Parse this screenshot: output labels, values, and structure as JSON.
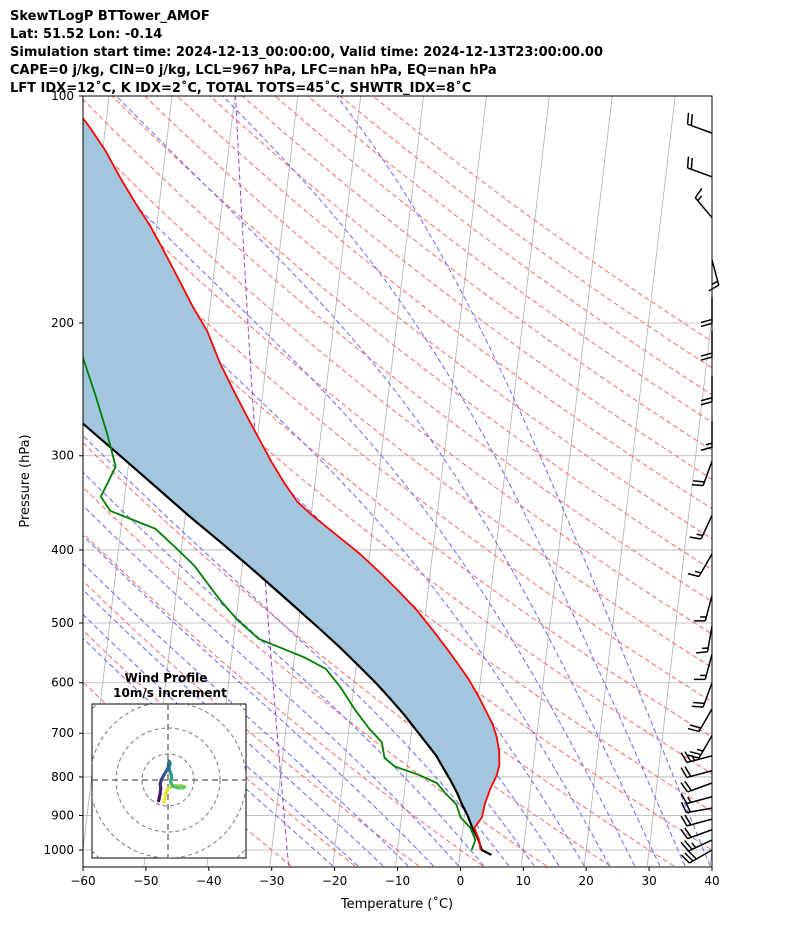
{
  "header": {
    "line1": "SkewTLogP BTTower_AMOF",
    "line2": "Lat: 51.52   Lon: -0.14",
    "line3": "Simulation start time: 2024-12-13_00:00:00, Valid time: 2024-12-13T23:00:00.00",
    "line4": "CAPE=0 j/kg, CIN=0 j/kg, LCL=967 hPa, LFC=nan hPa, EQ=nan hPa",
    "line5": "LFT IDX=12˚C, K IDX=2˚C, TOTAL TOTS=45˚C, SHWTR_IDX=8˚C"
  },
  "chart_data": {
    "type": "skewt",
    "xlabel": "Temperature (˚C)",
    "ylabel": "Pressure (hPa)",
    "xlim": [
      -60,
      40
    ],
    "ylim": [
      1050,
      100
    ],
    "yscale": "log",
    "x_ticks": [
      -60,
      -50,
      -40,
      -30,
      -20,
      -10,
      0,
      10,
      20,
      30,
      40
    ],
    "x_tick_labels": [
      "−60",
      "−50",
      "−40",
      "−30",
      "−20",
      "−10",
      "0",
      "10",
      "20",
      "30",
      "40"
    ],
    "y_ticks": [
      1000,
      900,
      800,
      700,
      600,
      500,
      400,
      300,
      200,
      100
    ],
    "y_tick_labels": [
      "1000",
      "900",
      "800",
      "700",
      "600",
      "500",
      "400",
      "300",
      "200",
      "100"
    ],
    "grid": true,
    "colors": {
      "temperature": "#ff0000",
      "dewpoint": "#008000",
      "parcel": "#000000",
      "cape_fill": "#a3c6df",
      "dry_adiabats": "#ff6666",
      "moist_adiabats": "#6666ff",
      "mixing_ratio": "#9944cc"
    },
    "series": [
      {
        "key": "temperature",
        "points": [
          [
            3.2,
            1000
          ],
          [
            2.8,
            970
          ],
          [
            1.8,
            935
          ],
          [
            2.8,
            905
          ],
          [
            3.0,
            870
          ],
          [
            3.6,
            830
          ],
          [
            4.4,
            795
          ],
          [
            4.6,
            770
          ],
          [
            4.3,
            740
          ],
          [
            3.7,
            710
          ],
          [
            2.8,
            682
          ],
          [
            1.5,
            655
          ],
          [
            -0.2,
            622
          ],
          [
            -2.0,
            592
          ],
          [
            -4.0,
            565
          ],
          [
            -6.0,
            540
          ],
          [
            -8.6,
            510
          ],
          [
            -11.5,
            480
          ],
          [
            -14.5,
            455
          ],
          [
            -17.8,
            430
          ],
          [
            -21.5,
            405
          ],
          [
            -26.0,
            380
          ],
          [
            -29.8,
            360
          ],
          [
            -32.5,
            345
          ],
          [
            -35.0,
            325
          ],
          [
            -37.4,
            305
          ],
          [
            -39.7,
            285
          ],
          [
            -42.2,
            265
          ],
          [
            -44.8,
            245
          ],
          [
            -47.5,
            225
          ],
          [
            -50.0,
            205
          ],
          [
            -52.8,
            190
          ],
          [
            -55.5,
            175
          ],
          [
            -58.5,
            160
          ],
          [
            -61.2,
            148
          ],
          [
            -64.0,
            138
          ],
          [
            -66.8,
            128
          ],
          [
            -69.6,
            118
          ],
          [
            -72.5,
            110
          ],
          [
            -75.5,
            103
          ],
          [
            -76.5,
            100
          ]
        ]
      },
      {
        "key": "dewpoint",
        "points": [
          [
            1.8,
            1000
          ],
          [
            2.2,
            970
          ],
          [
            1.2,
            935
          ],
          [
            -0.6,
            905
          ],
          [
            -1.5,
            870
          ],
          [
            -3.5,
            840
          ],
          [
            -5.0,
            815
          ],
          [
            -8.0,
            795
          ],
          [
            -12.0,
            775
          ],
          [
            -13.8,
            755
          ],
          [
            -14.5,
            720
          ],
          [
            -16.8,
            690
          ],
          [
            -19.5,
            650
          ],
          [
            -22.0,
            610
          ],
          [
            -24.8,
            575
          ],
          [
            -28.5,
            555
          ],
          [
            -36.0,
            525
          ],
          [
            -39.8,
            495
          ],
          [
            -43.0,
            465
          ],
          [
            -45.5,
            440
          ],
          [
            -47.6,
            420
          ],
          [
            -50.5,
            400
          ],
          [
            -54.5,
            375
          ],
          [
            -62.0,
            355
          ],
          [
            -63.8,
            340
          ],
          [
            -62.0,
            310
          ],
          [
            -64.0,
            280
          ],
          [
            -66.5,
            250
          ],
          [
            -69.5,
            220
          ],
          [
            -72.0,
            200
          ],
          [
            -73.8,
            185
          ],
          [
            -75.5,
            170
          ],
          [
            -77.0,
            155
          ],
          [
            -78.5,
            145
          ],
          [
            -80.5,
            135
          ],
          [
            -82.5,
            125
          ],
          [
            -84.0,
            117
          ],
          [
            -86.0,
            110
          ],
          [
            -88.0,
            103
          ],
          [
            -89.0,
            100
          ]
        ]
      },
      {
        "key": "parcel",
        "points": [
          [
            5.0,
            1015
          ],
          [
            3.4,
            1000
          ],
          [
            2.6,
            967
          ],
          [
            1.5,
            935
          ],
          [
            0.5,
            900
          ],
          [
            -0.6,
            870
          ],
          [
            -1.6,
            840
          ],
          [
            -2.8,
            810
          ],
          [
            -4.2,
            780
          ],
          [
            -5.6,
            750
          ],
          [
            -7.5,
            720
          ],
          [
            -9.5,
            690
          ],
          [
            -11.6,
            660
          ],
          [
            -14.0,
            630
          ],
          [
            -16.6,
            600
          ],
          [
            -19.6,
            570
          ],
          [
            -22.8,
            540
          ],
          [
            -26.4,
            510
          ],
          [
            -30.3,
            480
          ],
          [
            -34.5,
            450
          ],
          [
            -39.0,
            420
          ],
          [
            -44.0,
            390
          ],
          [
            -49.5,
            360
          ],
          [
            -55.2,
            330
          ],
          [
            -61.5,
            300
          ],
          [
            -68.5,
            270
          ],
          [
            -76.5,
            240
          ],
          [
            -85.0,
            210
          ],
          [
            -94.0,
            180
          ],
          [
            -103.5,
            150
          ],
          [
            -113.0,
            125
          ],
          [
            -121.0,
            100
          ]
        ]
      }
    ],
    "hodograph": {
      "title": "Wind Profile",
      "subtitle": "10m/s increment",
      "ring_increment_ms": 10,
      "ring_radii_ms": [
        10,
        20,
        30,
        40
      ],
      "points": [
        [
          -1.5,
          -8.5
        ],
        [
          -1.0,
          -5.5
        ],
        [
          0.0,
          -3.2
        ],
        [
          1.5,
          -2.5
        ],
        [
          3.2,
          -2.2
        ],
        [
          5.0,
          -2.2
        ],
        [
          6.4,
          -2.6
        ],
        [
          5.8,
          -3.0
        ],
        [
          3.6,
          -3.0
        ],
        [
          2.0,
          -2.4
        ],
        [
          1.2,
          -1.4
        ],
        [
          1.0,
          -0.2
        ],
        [
          1.4,
          1.0
        ],
        [
          1.2,
          2.2
        ],
        [
          0.6,
          3.6
        ],
        [
          0.4,
          5.0
        ],
        [
          0.8,
          6.3
        ],
        [
          0.4,
          7.2
        ],
        [
          0.2,
          6.1
        ],
        [
          0.0,
          4.6
        ],
        [
          -0.8,
          3.2
        ],
        [
          -1.8,
          1.6
        ],
        [
          -2.6,
          0.0
        ],
        [
          -3.0,
          -1.6
        ],
        [
          -2.8,
          -3.2
        ],
        [
          -3.0,
          -5.2
        ],
        [
          -3.4,
          -7.0
        ],
        [
          -3.6,
          -8.0
        ]
      ]
    },
    "wind_barbs": [
      {
        "p": 1000,
        "dir": 240,
        "speed_kt": 30
      },
      {
        "p": 970,
        "dir": 245,
        "speed_kt": 25
      },
      {
        "p": 940,
        "dir": 250,
        "speed_kt": 20
      },
      {
        "p": 910,
        "dir": 255,
        "speed_kt": 20
      },
      {
        "p": 880,
        "dir": 260,
        "speed_kt": 20
      },
      {
        "p": 850,
        "dir": 255,
        "speed_kt": 15
      },
      {
        "p": 815,
        "dir": 250,
        "speed_kt": 20
      },
      {
        "p": 785,
        "dir": 255,
        "speed_kt": 20
      },
      {
        "p": 750,
        "dir": 255,
        "speed_kt": 25
      },
      {
        "p": 705,
        "dir": 210,
        "speed_kt": 25
      },
      {
        "p": 650,
        "dir": 210,
        "speed_kt": 20
      },
      {
        "p": 600,
        "dir": 200,
        "speed_kt": 20
      },
      {
        "p": 550,
        "dir": 195,
        "speed_kt": 15
      },
      {
        "p": 505,
        "dir": 190,
        "speed_kt": 15
      },
      {
        "p": 460,
        "dir": 195,
        "speed_kt": 15
      },
      {
        "p": 405,
        "dir": 210,
        "speed_kt": 15
      },
      {
        "p": 360,
        "dir": 205,
        "speed_kt": 15
      },
      {
        "p": 305,
        "dir": 200,
        "speed_kt": 20
      },
      {
        "p": 270,
        "dir": 180,
        "speed_kt": 15
      },
      {
        "p": 235,
        "dir": 180,
        "speed_kt": 20
      },
      {
        "p": 205,
        "dir": 180,
        "speed_kt": 20
      },
      {
        "p": 185,
        "dir": 180,
        "speed_kt": 20
      },
      {
        "p": 165,
        "dir": 165,
        "speed_kt": 15
      },
      {
        "p": 145,
        "dir": 320,
        "speed_kt": 15
      },
      {
        "p": 128,
        "dir": 290,
        "speed_kt": 20
      },
      {
        "p": 112,
        "dir": 290,
        "speed_kt": 20
      }
    ]
  }
}
